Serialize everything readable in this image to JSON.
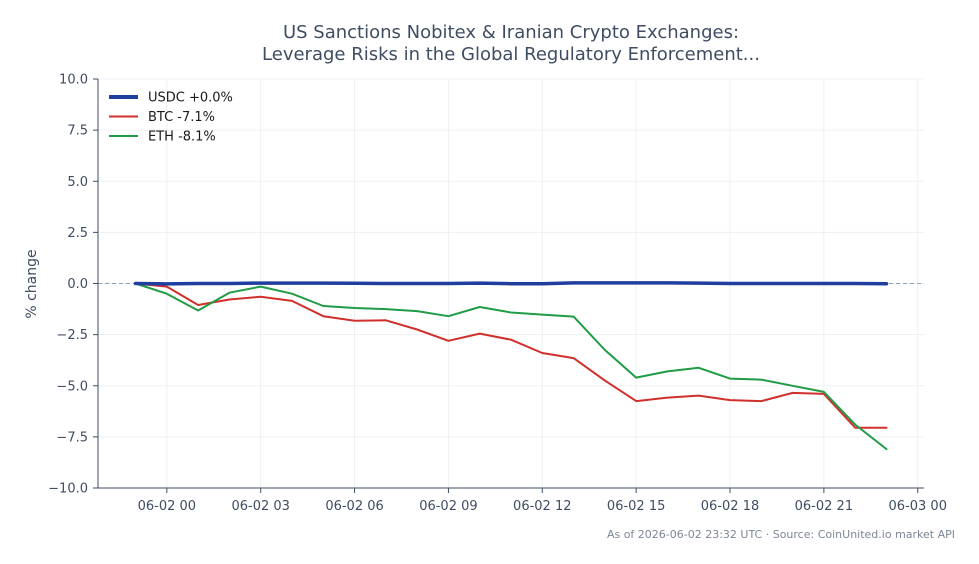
{
  "chart_data": {
    "type": "line",
    "title_lines": [
      "US Sanctions Nobitex & Iranian Crypto Exchanges:",
      "Leverage Risks in the Global Regulatory Enforcement..."
    ],
    "xlabel": "",
    "ylabel": "% change",
    "ylim": [
      -10,
      10
    ],
    "y_ticks": [
      10.0,
      7.5,
      5.0,
      2.5,
      0.0,
      -2.5,
      -5.0,
      -7.5,
      -10.0
    ],
    "y_tick_labels": [
      "10.0",
      "7.5",
      "5.0",
      "2.5",
      "0.0",
      "−2.5",
      "−5.0",
      "−7.5",
      "−10.0"
    ],
    "x_range_hours": [
      -2.2,
      24.2
    ],
    "x_ticks_hours": [
      0,
      3,
      6,
      9,
      12,
      15,
      18,
      21,
      24
    ],
    "x_tick_labels": [
      "06-02 00",
      "06-02 03",
      "06-02 06",
      "06-02 09",
      "06-02 12",
      "06-02 15",
      "06-02 18",
      "06-02 21",
      "06-03 00"
    ],
    "x_hours": [
      -1,
      0,
      1,
      2,
      3,
      4,
      5,
      6,
      7,
      8,
      9,
      10,
      11,
      12,
      13,
      14,
      15,
      16,
      17,
      18,
      19,
      20,
      21,
      22,
      23
    ],
    "grid": true,
    "zero_reference_line": true,
    "legend_position": "top-left",
    "series": [
      {
        "name": "USDC +0.0%",
        "color": "#1f3fa0",
        "width": "thick",
        "values": [
          0.0,
          -0.02,
          0.0,
          0.0,
          0.02,
          0.02,
          0.02,
          0.01,
          0.0,
          0.0,
          0.0,
          0.02,
          -0.01,
          -0.01,
          0.03,
          0.03,
          0.03,
          0.03,
          0.02,
          0.0,
          0.0,
          0.0,
          0.0,
          0.0,
          -0.01
        ]
      },
      {
        "name": "BTC -7.1%",
        "color": "#d0302c",
        "width": "normal",
        "values": [
          0.0,
          -0.15,
          -1.05,
          -0.78,
          -0.65,
          -0.85,
          -1.6,
          -1.82,
          -1.8,
          -2.25,
          -2.8,
          -2.45,
          -2.75,
          -3.4,
          -3.65,
          -4.75,
          -5.75,
          -5.58,
          -5.48,
          -5.7,
          -5.75,
          -5.35,
          -5.4,
          -7.05,
          -7.05
        ]
      },
      {
        "name": "ETH -8.1%",
        "color": "#1f9c45",
        "width": "normal",
        "values": [
          0.0,
          -0.5,
          -1.32,
          -0.45,
          -0.15,
          -0.5,
          -1.1,
          -1.2,
          -1.25,
          -1.35,
          -1.6,
          -1.15,
          -1.42,
          -1.52,
          -1.62,
          -3.25,
          -4.6,
          -4.3,
          -4.12,
          -4.65,
          -4.7,
          -5.0,
          -5.3,
          -6.9,
          -8.1
        ]
      }
    ],
    "footer": "As of 2026-06-02 23:32 UTC · Source: CoinUnited.io market API"
  }
}
